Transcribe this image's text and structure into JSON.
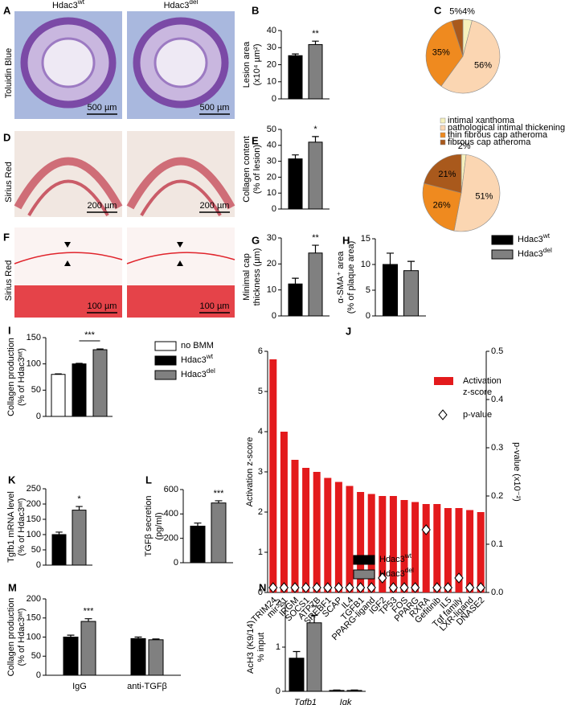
{
  "images": [
    {
      "panel": "A",
      "stain": "Toluidin Blue",
      "columns": [
        "Hdac3wt",
        "Hdac3del"
      ],
      "scale_bars": [
        "500 µm",
        "500 µm"
      ]
    },
    {
      "panel": "D",
      "stain": "Sirius Red",
      "scale_bars": [
        "200 µm",
        "200 µm"
      ]
    },
    {
      "panel": "F",
      "stain": "Sirius Red",
      "scale_bars": [
        "100 µm",
        "100 µm"
      ]
    }
  ],
  "chart_data": [
    {
      "panel": "B",
      "type": "bar",
      "ylabel": [
        "Lesion area",
        "(x10⁴ µm²)"
      ],
      "categories": [
        null
      ],
      "series": [
        {
          "color": "#000000",
          "values": [
            25.3
          ],
          "errors": [
            1
          ]
        },
        {
          "color": "#808080",
          "values": [
            31.8
          ],
          "errors": [
            2
          ]
        }
      ],
      "ylim": [
        0,
        40
      ],
      "yticks": [
        0,
        10,
        20,
        30,
        40
      ],
      "annotations": [
        "**"
      ]
    },
    {
      "panel": "C",
      "type": "pie",
      "categories": [
        "intimal xanthoma",
        "pathological intimal thickening",
        "thin fibrous cap atheroma",
        "fibrous cap atheroma"
      ],
      "colors": [
        "#f6f1bd",
        "#fbd6b2",
        "#ef8a1f",
        "#a9591c"
      ],
      "values": [
        4,
        56,
        35,
        5
      ],
      "value_labels": [
        "4%",
        "56%",
        "35%",
        "5%"
      ]
    },
    {
      "type": "pie",
      "colors": [
        "#f6f1bd",
        "#fbd6b2",
        "#ef8a1f",
        "#a9591c"
      ],
      "values": [
        2,
        51,
        26,
        21
      ],
      "value_labels": [
        "2%",
        "51%",
        "26%",
        "21%"
      ]
    },
    {
      "panel": "E",
      "type": "bar",
      "ylabel": [
        "Collagen content",
        "(% of lesion)"
      ],
      "categories": [
        null
      ],
      "series": [
        {
          "color": "#000000",
          "values": [
            31.5
          ],
          "errors": [
            2.5
          ]
        },
        {
          "color": "#808080",
          "values": [
            42
          ],
          "errors": [
            3.5
          ]
        }
      ],
      "ylim": [
        0,
        50
      ],
      "yticks": [
        0,
        10,
        20,
        30,
        40,
        50
      ],
      "annotations": [
        "*"
      ]
    },
    {
      "panel": "G",
      "type": "bar",
      "ylabel": [
        "Minimal cap",
        "thickness (µm)"
      ],
      "categories": [
        null
      ],
      "series": [
        {
          "color": "#000000",
          "values": [
            12.3
          ],
          "errors": [
            2.2
          ]
        },
        {
          "color": "#808080",
          "values": [
            24.2
          ],
          "errors": [
            3
          ]
        }
      ],
      "ylim": [
        0,
        30
      ],
      "yticks": [
        0,
        10,
        20,
        30
      ],
      "annotations": [
        "**"
      ]
    },
    {
      "panel": "H",
      "type": "bar",
      "ylabel": [
        "α-SMA⁺ area",
        "(% of plaque area)"
      ],
      "categories": [
        null
      ],
      "series": [
        {
          "name": "Hdac3wt",
          "color": "#000000",
          "values": [
            10
          ],
          "errors": [
            2.2
          ]
        },
        {
          "name": "Hdac3del",
          "color": "#808080",
          "values": [
            8.8
          ],
          "errors": [
            1.8
          ]
        }
      ],
      "ylim": [
        0,
        15
      ],
      "yticks": [
        0,
        5,
        10,
        15
      ]
    },
    {
      "panel": "I",
      "type": "bar",
      "ylabel": [
        "Collagen production",
        "(% of Hdac3ʷᵗ)"
      ],
      "categories": [
        null
      ],
      "series": [
        {
          "name": "no BMM",
          "color": "#ffffff",
          "values": [
            80
          ],
          "errors": [
            1
          ]
        },
        {
          "name": "Hdac3wt",
          "color": "#000000",
          "values": [
            100
          ],
          "errors": [
            1
          ]
        },
        {
          "name": "Hdac3del",
          "color": "#808080",
          "values": [
            127
          ],
          "errors": [
            1.5
          ]
        }
      ],
      "ylim": [
        0,
        150
      ],
      "yticks": [
        0,
        50,
        100,
        150
      ],
      "annotations": [
        "***"
      ]
    },
    {
      "panel": "J",
      "type": "bar",
      "ylabel": [
        "Activation z-score"
      ],
      "y2label": "p-value (x10⁻²)",
      "categories": [
        "TRIM24",
        "mir-21",
        "IRGM",
        "SOCS1",
        "ATP7B",
        "SREBF1",
        "SCAP",
        "IL4",
        "TGFB1",
        "PPARG-ligand",
        "IGF2",
        "TP53",
        "FOS",
        "PPARG",
        "RXRA",
        "Gefitinib",
        "IL5",
        "Tgf family",
        "LXR-ligand",
        "DNASE2"
      ],
      "series": [
        {
          "name": "Activation z-score",
          "color": "#e31a1c",
          "values": [
            5.8,
            4.0,
            3.3,
            3.1,
            3.0,
            2.85,
            2.75,
            2.65,
            2.5,
            2.45,
            2.4,
            2.4,
            2.3,
            2.25,
            2.2,
            2.2,
            2.1,
            2.1,
            2.05,
            2.0
          ]
        },
        {
          "name": "p-value",
          "axis": "y2",
          "color": "#ffffff",
          "values": [
            0.01,
            0.01,
            0.01,
            0.01,
            0.01,
            0.01,
            0.01,
            0.01,
            0.01,
            0.01,
            0.03,
            0.01,
            0.01,
            0.01,
            0.13,
            0.01,
            0.01,
            0.03,
            0.01,
            0.01
          ]
        }
      ],
      "ylim": [
        0,
        6
      ],
      "yticks": [
        0,
        1,
        2,
        3,
        4,
        5,
        6
      ],
      "y2lim": [
        0,
        0.5
      ],
      "y2ticks": [
        {
          "value": 0,
          "label": "0.0"
        },
        0.1,
        0.2,
        0.3,
        0.4,
        0.5
      ]
    },
    {
      "panel": "K",
      "type": "bar",
      "ylabel": [
        "Tgfb1 mRNA level",
        "(% of Hdac3ʷᵗ)"
      ],
      "categories": [
        null
      ],
      "series": [
        {
          "color": "#000000",
          "values": [
            100
          ],
          "errors": [
            8
          ]
        },
        {
          "color": "#808080",
          "values": [
            180
          ],
          "errors": [
            12
          ]
        }
      ],
      "ylim": [
        0,
        250
      ],
      "yticks": [
        0,
        50,
        100,
        150,
        200,
        250
      ],
      "annotations": [
        "*"
      ]
    },
    {
      "panel": "L",
      "type": "bar",
      "ylabel": [
        "TGFβ secretion",
        "(pg/ml)"
      ],
      "categories": [
        null
      ],
      "series": [
        {
          "color": "#000000",
          "values": [
            300
          ],
          "errors": [
            25
          ]
        },
        {
          "color": "#808080",
          "values": [
            490
          ],
          "errors": [
            18
          ]
        }
      ],
      "ylim": [
        0,
        600
      ],
      "yticks": [
        0,
        200,
        400,
        600
      ],
      "annotations": [
        "***"
      ]
    },
    {
      "panel": "M",
      "type": "bar",
      "ylabel": [
        "Collagen production",
        "(% of Hdac3ʷᵗ)"
      ],
      "categories": [
        "IgG",
        "anti-TGFβ"
      ],
      "series": [
        {
          "color": "#000000",
          "values": [
            100,
            96
          ],
          "errors": [
            5,
            4
          ]
        },
        {
          "color": "#808080",
          "values": [
            141,
            93
          ],
          "errors": [
            7,
            2
          ]
        }
      ],
      "ylim": [
        0,
        200
      ],
      "yticks": [
        0,
        50,
        100,
        150,
        200
      ],
      "annotations": [
        "***"
      ]
    },
    {
      "panel": "N",
      "type": "bar",
      "ylabel": [
        "AcH3 (K9/14)",
        "% input"
      ],
      "categories": [
        "Tgfb1",
        "Igk"
      ],
      "series": [
        {
          "name": "Hdac3wt",
          "color": "#000000",
          "values": [
            0.75,
            0.02
          ],
          "errors": [
            0.15,
            0.01
          ]
        },
        {
          "name": "Hdac3del",
          "color": "#808080",
          "values": [
            1.55,
            0.02
          ],
          "errors": [
            0.17,
            0.01
          ]
        }
      ],
      "ylim": [
        0,
        2
      ],
      "yticks": [
        0,
        1,
        2
      ],
      "annotations": [
        "**"
      ]
    }
  ]
}
